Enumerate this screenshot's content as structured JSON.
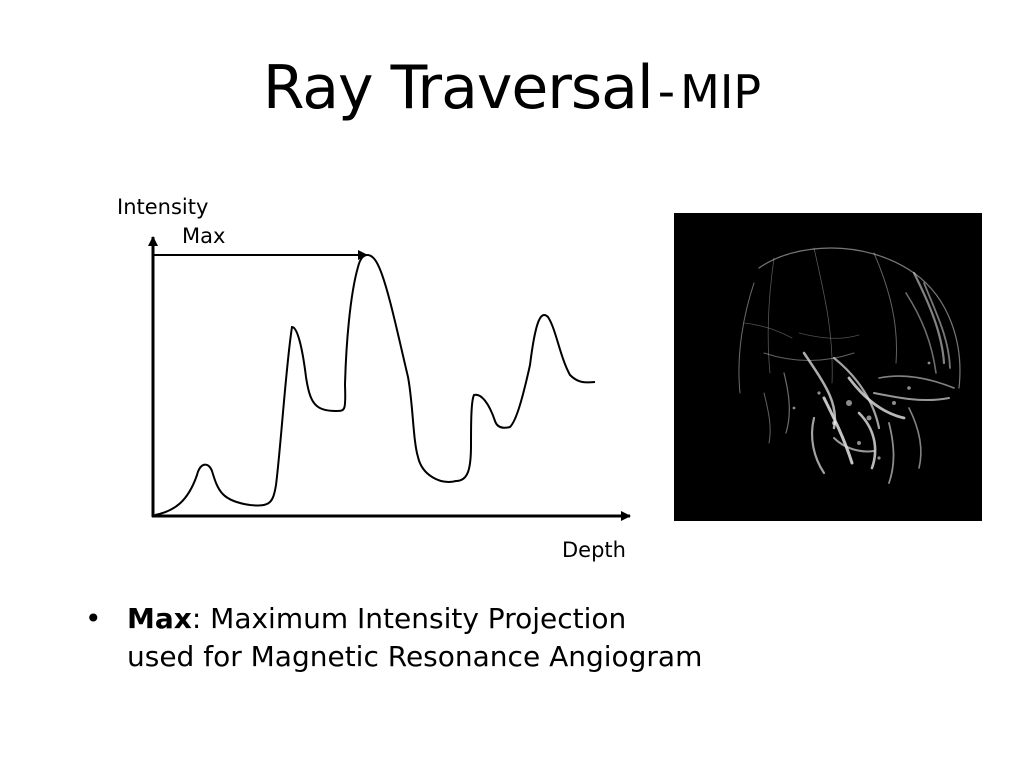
{
  "slide": {
    "title_main": "Ray Traversal",
    "title_separator": "-",
    "title_sub": "MIP"
  },
  "diagram": {
    "y_axis_label": "Intensity",
    "max_label": "Max",
    "x_axis_label": "Depth",
    "line_color": "#000000"
  },
  "image": {
    "background": "#000000",
    "content_color": "#ffffff"
  },
  "bullets": [
    {
      "term": "Max",
      "line1": ": Maximum Intensity Projection",
      "line2": "used for Magnetic Resonance Angiogram"
    }
  ]
}
